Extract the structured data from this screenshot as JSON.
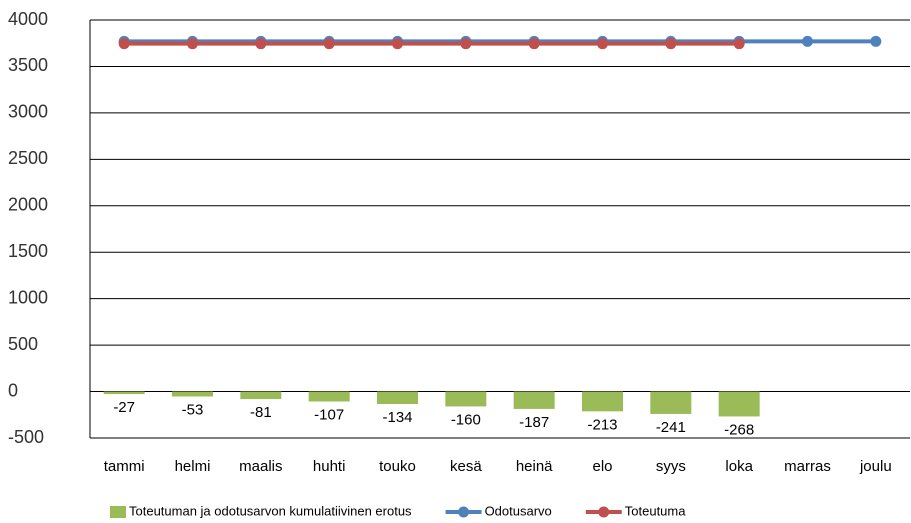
{
  "chart_data": {
    "type": "combo",
    "categories": [
      "tammi",
      "helmi",
      "maalis",
      "huhti",
      "touko",
      "kesä",
      "heinä",
      "elo",
      "syys",
      "loka",
      "marras",
      "joulu"
    ],
    "series": [
      {
        "name": "Toteutuman ja odotusarvon kumulatiivinen erotus",
        "type": "bar",
        "color": "#9bbb59",
        "values": [
          -27,
          -53,
          -81,
          -107,
          -134,
          -160,
          -187,
          -213,
          -241,
          -268,
          null,
          null
        ]
      },
      {
        "name": "Odotusarvo",
        "type": "line",
        "color": "#4f81bd",
        "values": [
          3770,
          3770,
          3770,
          3770,
          3770,
          3770,
          3770,
          3770,
          3770,
          3770,
          3770,
          3770
        ]
      },
      {
        "name": "Toteutuma",
        "type": "line",
        "color": "#c0504d",
        "values": [
          3745,
          3745,
          3745,
          3745,
          3745,
          3745,
          3745,
          3745,
          3745,
          3745,
          null,
          null
        ]
      }
    ],
    "ylim": [
      -500,
      4000
    ],
    "yticks": [
      -500,
      0,
      500,
      1000,
      1500,
      2000,
      2500,
      3000,
      3500,
      4000
    ],
    "grid": true,
    "legend": "bottom"
  }
}
